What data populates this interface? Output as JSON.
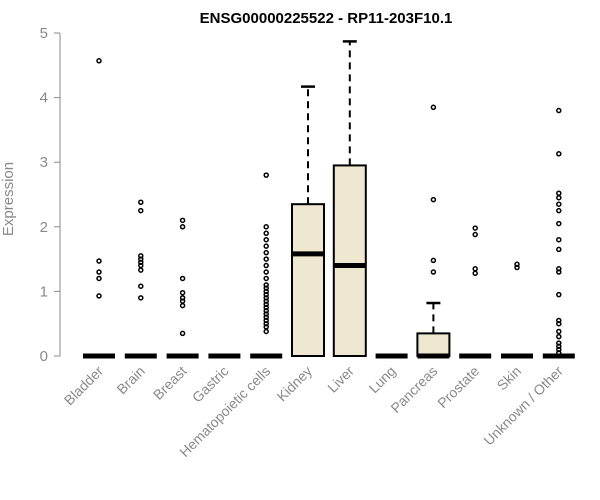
{
  "chart_data": {
    "type": "boxplot",
    "title": "ENSG00000225522 - RP11-203F10.1",
    "xlabel": "",
    "ylabel": "Expression",
    "ylim": [
      0,
      5
    ],
    "yticks": [
      0,
      1,
      2,
      3,
      4,
      5
    ],
    "grid": false,
    "colors": {
      "box_fill": "#efe8d0",
      "box_stroke": "#000000",
      "median": "#000000",
      "axis_text": "#8a8a8a",
      "axis_line": "#8a8a8a",
      "title": "#000000"
    },
    "categories": [
      {
        "name": "Bladder",
        "q1": 0,
        "median": 0,
        "q3": 0,
        "whisker_low": 0,
        "whisker_high": 0,
        "outliers": [
          0.93,
          1.2,
          1.3,
          1.47,
          4.57
        ]
      },
      {
        "name": "Brain",
        "q1": 0,
        "median": 0,
        "q3": 0,
        "whisker_low": 0,
        "whisker_high": 0,
        "outliers": [
          0.9,
          1.08,
          1.33,
          1.4,
          1.45,
          1.5,
          1.55,
          2.25,
          2.38
        ]
      },
      {
        "name": "Breast",
        "q1": 0,
        "median": 0,
        "q3": 0,
        "whisker_low": 0,
        "whisker_high": 0,
        "outliers": [
          0.35,
          0.78,
          0.85,
          0.9,
          0.98,
          1.2,
          2.0,
          2.1
        ]
      },
      {
        "name": "Gastric",
        "q1": 0,
        "median": 0,
        "q3": 0,
        "whisker_low": 0,
        "whisker_high": 0,
        "outliers": []
      },
      {
        "name": "Hematopoietic cells",
        "q1": 0,
        "median": 0,
        "q3": 0,
        "whisker_low": 0,
        "whisker_high": 0,
        "outliers": [
          0.38,
          0.45,
          0.5,
          0.55,
          0.6,
          0.65,
          0.7,
          0.75,
          0.8,
          0.85,
          0.9,
          0.95,
          1.0,
          1.05,
          1.1,
          1.2,
          1.3,
          1.4,
          1.5,
          1.6,
          1.7,
          1.8,
          1.9,
          2.0,
          2.8
        ]
      },
      {
        "name": "Kidney",
        "q1": 0,
        "median": 1.58,
        "q3": 2.35,
        "whisker_low": 0,
        "whisker_high": 4.17,
        "outliers": []
      },
      {
        "name": "Liver",
        "q1": 0,
        "median": 1.4,
        "q3": 2.95,
        "whisker_low": 0,
        "whisker_high": 4.87,
        "outliers": []
      },
      {
        "name": "Lung",
        "q1": 0,
        "median": 0,
        "q3": 0,
        "whisker_low": 0,
        "whisker_high": 0,
        "outliers": []
      },
      {
        "name": "Pancreas",
        "q1": 0,
        "median": 0,
        "q3": 0.35,
        "whisker_low": 0,
        "whisker_high": 0.82,
        "outliers": [
          1.3,
          1.48,
          2.42,
          3.85
        ]
      },
      {
        "name": "Prostate",
        "q1": 0,
        "median": 0,
        "q3": 0,
        "whisker_low": 0,
        "whisker_high": 0,
        "outliers": [
          1.28,
          1.35,
          1.88,
          1.98
        ]
      },
      {
        "name": "Skin",
        "q1": 0,
        "median": 0,
        "q3": 0,
        "whisker_low": 0,
        "whisker_high": 0,
        "outliers": [
          1.37,
          1.42
        ]
      },
      {
        "name": "Unknown / Other",
        "q1": 0,
        "median": 0,
        "q3": 0,
        "whisker_low": 0,
        "whisker_high": 0,
        "outliers": [
          0.05,
          0.1,
          0.15,
          0.2,
          0.3,
          0.38,
          0.5,
          0.55,
          0.95,
          1.3,
          1.35,
          1.65,
          1.8,
          2.05,
          2.25,
          2.35,
          2.45,
          2.52,
          3.13,
          3.8
        ]
      }
    ]
  }
}
